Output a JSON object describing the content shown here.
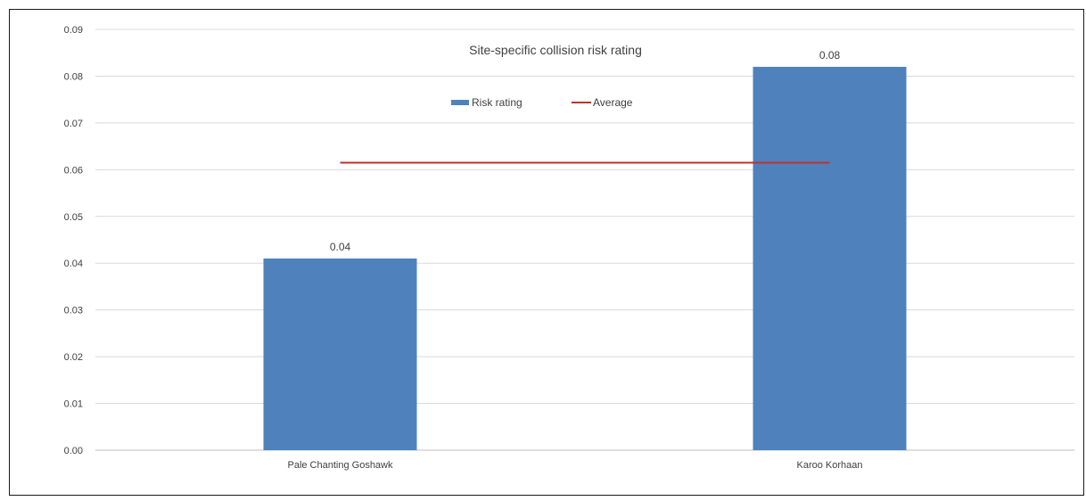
{
  "chart_data": {
    "type": "bar",
    "title": "Site-specific collision risk rating",
    "categories": [
      "Pale Chanting Goshawk",
      "Karoo Korhaan"
    ],
    "series": [
      {
        "name": "Risk rating",
        "values": [
          0.041,
          0.082
        ],
        "data_labels": [
          "0.04",
          "0.08"
        ],
        "color": "#4f81bd"
      }
    ],
    "average": {
      "name": "Average",
      "value": 0.0615,
      "color": "#c0312b"
    },
    "y_ticks": [
      "0.00",
      "0.01",
      "0.02",
      "0.03",
      "0.04",
      "0.05",
      "0.06",
      "0.07",
      "0.08",
      "0.09"
    ],
    "ylim": [
      0,
      0.09
    ],
    "grid": true,
    "legend_position": "top-center",
    "xlabel": "",
    "ylabel": ""
  }
}
